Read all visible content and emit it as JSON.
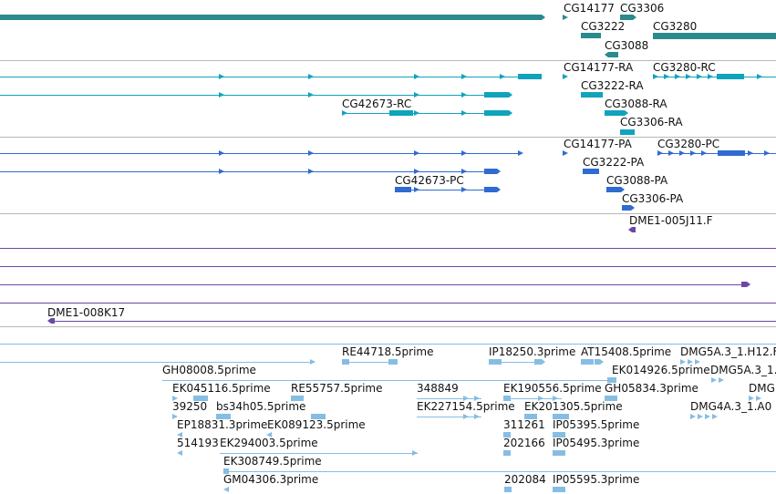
{
  "colors": {
    "gene": "#2a8a8c",
    "transcript_ra": "#10a3bc",
    "transcript_pa": "#2f6bd1",
    "clone": "#6a48a8",
    "est": "#86bde3",
    "divider": "#b8b8b8",
    "text": "#111111"
  },
  "tracks": {
    "genes": {
      "labels": [
        "CG14177",
        "CG3306",
        "CG3222",
        "CG3280",
        "CG3088"
      ]
    },
    "transcripts_ra": {
      "labels": [
        "CG14177-RA",
        "CG3280-RC",
        "CG3222-RA",
        "CG42673-RC",
        "CG3088-RA",
        "CG3306-RA"
      ]
    },
    "transcripts_pa": {
      "labels": [
        "CG14177-PA",
        "CG3280-PC",
        "CG3222-PA",
        "CG42673-PC",
        "CG3088-PA",
        "CG3306-PA"
      ]
    },
    "clones_top": {
      "labels": [
        "DME1-005J11.F"
      ]
    },
    "clones_bottom": {
      "labels": [
        "DME1-008K17"
      ]
    },
    "ests": {
      "labels": [
        "RE44718.5prime",
        "IP18250.3prime",
        "AT15408.5prime",
        "DMG5A.3_1.H12.F",
        "GH08008.5prime",
        "EK014926.5prime",
        "DMG5A.3_1.",
        "EK045116.5prime",
        "RE55757.5prime",
        "348849",
        "EK190556.5prime",
        "GH05834.3prime",
        "DMG",
        "39250",
        "bs34h05.5prime",
        "EK227154.5prime",
        "EK201305.5prime",
        "DMG4A.3_1.A0",
        "EP18831.3prime",
        "EK089123.5prime",
        "311261",
        "IP05395.5prime",
        "514193",
        "EK294003.5prime",
        "202166",
        "IP05495.3prime",
        "EK308749.5prime",
        "GM04306.3prime",
        "202084",
        "IP05595.3prime"
      ]
    }
  }
}
